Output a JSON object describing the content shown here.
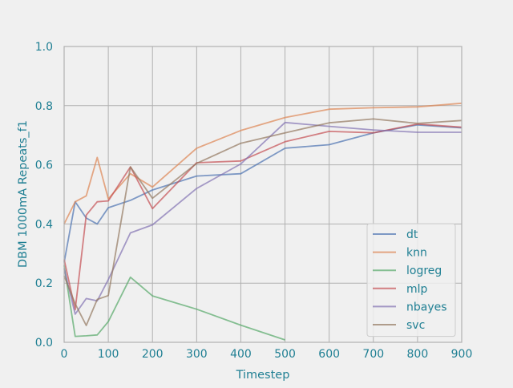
{
  "chart_data": {
    "type": "line",
    "xlabel": "Timestep",
    "ylabel": "DBM 1000mA Repeats_f1",
    "xlim": [
      0,
      900
    ],
    "ylim": [
      0.0,
      1.0
    ],
    "xticks": [
      "0",
      "100",
      "200",
      "300",
      "400",
      "500",
      "600",
      "700",
      "800",
      "900"
    ],
    "yticks": [
      "0.0",
      "0.2",
      "0.4",
      "0.6",
      "0.8",
      "1.0"
    ],
    "grid": true,
    "legend_position": "lower-right",
    "series": [
      {
        "name": "dt",
        "color": "#4c72b0",
        "x": [
          0,
          25,
          50,
          75,
          100,
          150,
          200,
          300,
          400,
          500,
          600,
          700,
          800,
          900
        ],
        "y": [
          0.27,
          0.475,
          0.42,
          0.4,
          0.455,
          0.48,
          0.515,
          0.562,
          0.57,
          0.656,
          0.668,
          0.708,
          0.735,
          0.725
        ]
      },
      {
        "name": "knn",
        "color": "#dd8452",
        "x": [
          0,
          25,
          50,
          75,
          100,
          150,
          200,
          300,
          400,
          500,
          600,
          700,
          800,
          900
        ],
        "y": [
          0.4,
          0.475,
          0.495,
          0.625,
          0.485,
          0.57,
          0.525,
          0.656,
          0.716,
          0.76,
          0.788,
          0.793,
          0.796,
          0.808
        ]
      },
      {
        "name": "logreg",
        "color": "#55a868",
        "x": [
          0,
          25,
          50,
          75,
          100,
          150,
          200,
          300,
          400,
          500
        ],
        "y": [
          0.26,
          0.02,
          0.022,
          0.025,
          0.07,
          0.22,
          0.157,
          0.112,
          0.058,
          0.008
        ]
      },
      {
        "name": "mlp",
        "color": "#c44e52",
        "x": [
          0,
          25,
          50,
          75,
          100,
          150,
          200,
          300,
          400,
          500,
          600,
          700,
          800,
          900
        ],
        "y": [
          0.28,
          0.11,
          0.43,
          0.475,
          0.478,
          0.593,
          0.452,
          0.607,
          0.613,
          0.678,
          0.713,
          0.708,
          0.738,
          0.727
        ]
      },
      {
        "name": "nbayes",
        "color": "#8172b2",
        "x": [
          0,
          25,
          50,
          75,
          100,
          150,
          200,
          300,
          400,
          500,
          600,
          700,
          800,
          900
        ],
        "y": [
          0.25,
          0.095,
          0.148,
          0.14,
          0.212,
          0.37,
          0.397,
          0.52,
          0.603,
          0.743,
          0.73,
          0.718,
          0.71,
          0.71
        ]
      },
      {
        "name": "svc",
        "color": "#937860",
        "x": [
          0,
          25,
          50,
          75,
          100,
          150,
          200,
          300,
          400,
          500,
          600,
          700,
          800,
          900
        ],
        "y": [
          0.225,
          0.13,
          0.057,
          0.145,
          0.158,
          0.593,
          0.487,
          0.605,
          0.673,
          0.708,
          0.742,
          0.755,
          0.74,
          0.75
        ]
      }
    ]
  }
}
